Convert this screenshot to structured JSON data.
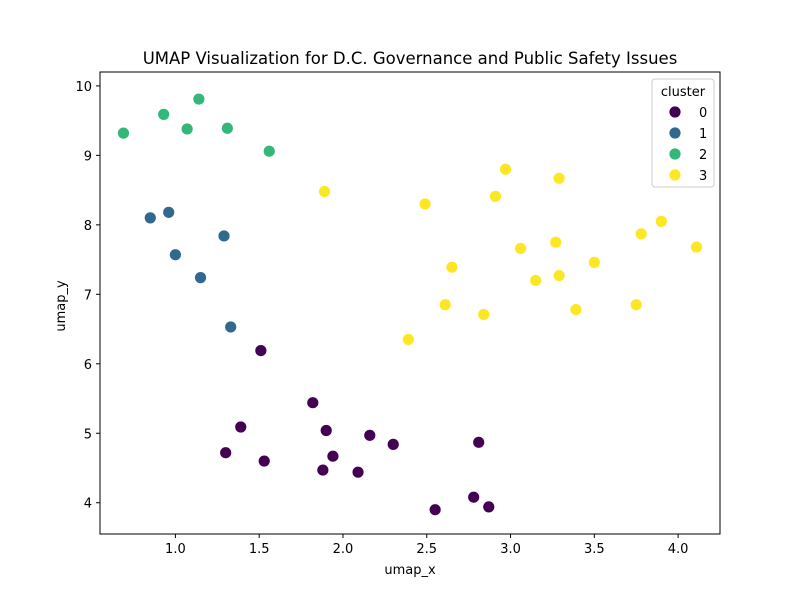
{
  "chart_data": {
    "type": "scatter",
    "title": "UMAP Visualization for D.C. Governance and Public Safety Issues",
    "xlabel": "umap_x",
    "ylabel": "umap_y",
    "xlim": [
      0.55,
      4.25
    ],
    "ylim": [
      3.55,
      10.2
    ],
    "xticks": [
      "1.0",
      "1.5",
      "2.0",
      "2.5",
      "3.0",
      "3.5",
      "4.0"
    ],
    "yticks": [
      "4",
      "5",
      "6",
      "7",
      "8",
      "9",
      "10"
    ],
    "grid": false,
    "legend": {
      "title": "cluster",
      "placement": "top-right",
      "entries": [
        "0",
        "1",
        "2",
        "3"
      ]
    },
    "colors": {
      "0": "#440154",
      "1": "#31688e",
      "2": "#35b779",
      "3": "#fde725"
    },
    "series": [
      {
        "name": "0",
        "points": [
          [
            1.51,
            6.19
          ],
          [
            1.82,
            5.44
          ],
          [
            1.39,
            5.09
          ],
          [
            1.9,
            5.04
          ],
          [
            2.16,
            4.97
          ],
          [
            2.3,
            4.84
          ],
          [
            2.81,
            4.87
          ],
          [
            1.3,
            4.72
          ],
          [
            1.53,
            4.6
          ],
          [
            1.94,
            4.67
          ],
          [
            1.88,
            4.47
          ],
          [
            2.09,
            4.44
          ],
          [
            2.78,
            4.08
          ],
          [
            2.87,
            3.94
          ],
          [
            2.55,
            3.9
          ]
        ]
      },
      {
        "name": "1",
        "points": [
          [
            0.96,
            8.18
          ],
          [
            0.85,
            8.1
          ],
          [
            1.29,
            7.84
          ],
          [
            1.0,
            7.57
          ],
          [
            1.15,
            7.24
          ],
          [
            1.33,
            6.53
          ]
        ]
      },
      {
        "name": "2",
        "points": [
          [
            1.14,
            9.81
          ],
          [
            0.93,
            9.59
          ],
          [
            1.07,
            9.38
          ],
          [
            1.31,
            9.39
          ],
          [
            0.69,
            9.32
          ],
          [
            1.56,
            9.06
          ]
        ]
      },
      {
        "name": "3",
        "points": [
          [
            2.97,
            8.8
          ],
          [
            3.29,
            8.67
          ],
          [
            1.89,
            8.48
          ],
          [
            2.91,
            8.41
          ],
          [
            2.49,
            8.3
          ],
          [
            3.9,
            8.05
          ],
          [
            3.78,
            7.87
          ],
          [
            3.27,
            7.75
          ],
          [
            3.06,
            7.66
          ],
          [
            4.11,
            7.68
          ],
          [
            3.5,
            7.46
          ],
          [
            2.65,
            7.39
          ],
          [
            3.29,
            7.27
          ],
          [
            3.15,
            7.2
          ],
          [
            2.61,
            6.85
          ],
          [
            3.75,
            6.85
          ],
          [
            3.39,
            6.78
          ],
          [
            2.84,
            6.71
          ],
          [
            2.39,
            6.35
          ]
        ]
      }
    ]
  }
}
